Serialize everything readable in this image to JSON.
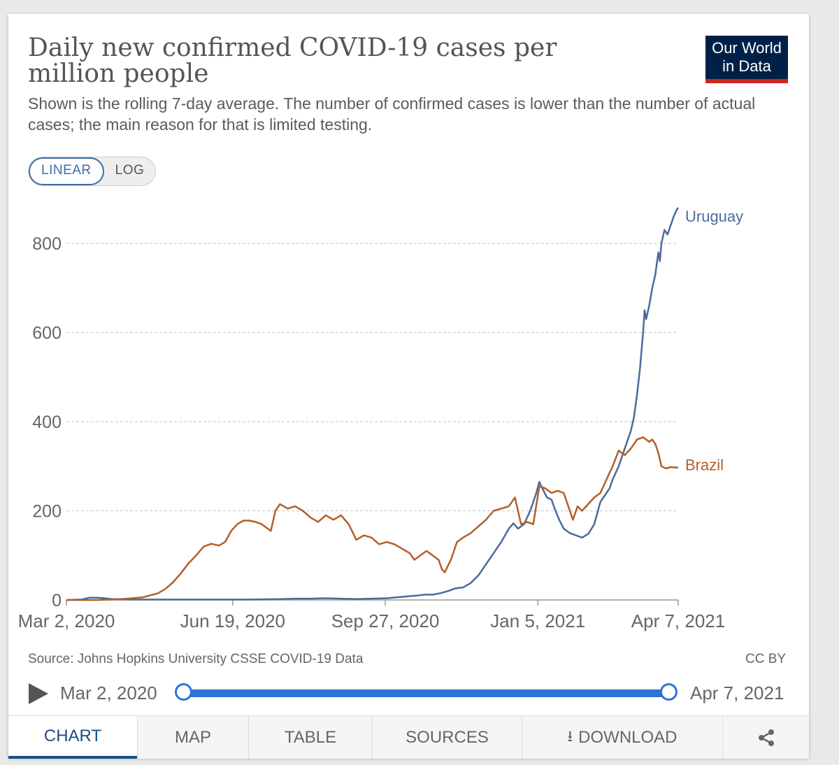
{
  "header": {
    "title": "Daily new confirmed COVID-19 cases per million people",
    "subtitle": "Shown is the rolling 7-day average. The number of confirmed cases is lower than the number of actual cases; the main reason for that is limited testing.",
    "logo_line1": "Our World",
    "logo_line2": "in Data"
  },
  "scale_toggle": {
    "linear_label": "LINEAR",
    "log_label": "LOG",
    "selected": "LINEAR"
  },
  "footer": {
    "source": "Source: Johns Hopkins University CSSE COVID-19 Data",
    "license": "CC BY"
  },
  "timeline": {
    "start_label": "Mar 2, 2020",
    "end_label": "Apr 7, 2021",
    "play_icon": "play-icon",
    "selected_start_fraction": 0,
    "selected_end_fraction": 1
  },
  "tabs": {
    "chart": "CHART",
    "map": "MAP",
    "table": "TABLE",
    "sources": "SOURCES",
    "download": "DOWNLOAD",
    "download_icon": "download-icon",
    "share_icon": "share-icon",
    "active": "CHART"
  },
  "colors": {
    "uruguay": "#4c6a9c",
    "brazil": "#b35f26",
    "accent": "#2e73d6",
    "logo_bg": "#002147",
    "logo_stripe": "#ce261e"
  },
  "chart_data": {
    "type": "line",
    "title": "Daily new confirmed COVID-19 cases per million people",
    "xlabel": "",
    "ylabel": "",
    "x_domain_days": [
      0,
      401
    ],
    "x_ticks": [
      {
        "day": 0,
        "label": "Mar 2, 2020"
      },
      {
        "day": 109,
        "label": "Jun 19, 2020"
      },
      {
        "day": 209,
        "label": "Sep 27, 2020"
      },
      {
        "day": 309,
        "label": "Jan 5, 2021"
      },
      {
        "day": 401,
        "label": "Apr 7, 2021"
      }
    ],
    "ylim": [
      0,
      880
    ],
    "y_ticks": [
      0,
      200,
      400,
      600,
      800
    ],
    "grid": true,
    "series": [
      {
        "name": "Uruguay",
        "points": [
          [
            0,
            0
          ],
          [
            10,
            1
          ],
          [
            15,
            5
          ],
          [
            20,
            5
          ],
          [
            25,
            4
          ],
          [
            30,
            2
          ],
          [
            40,
            1
          ],
          [
            60,
            1
          ],
          [
            80,
            1
          ],
          [
            100,
            1
          ],
          [
            120,
            1
          ],
          [
            140,
            2
          ],
          [
            150,
            3
          ],
          [
            160,
            3
          ],
          [
            170,
            4
          ],
          [
            180,
            3
          ],
          [
            190,
            2
          ],
          [
            200,
            3
          ],
          [
            210,
            4
          ],
          [
            220,
            7
          ],
          [
            230,
            10
          ],
          [
            235,
            12
          ],
          [
            240,
            12
          ],
          [
            245,
            15
          ],
          [
            250,
            20
          ],
          [
            255,
            26
          ],
          [
            260,
            28
          ],
          [
            265,
            38
          ],
          [
            270,
            55
          ],
          [
            275,
            80
          ],
          [
            280,
            105
          ],
          [
            285,
            130
          ],
          [
            290,
            160
          ],
          [
            293,
            172
          ],
          [
            296,
            160
          ],
          [
            300,
            170
          ],
          [
            304,
            200
          ],
          [
            308,
            240
          ],
          [
            310,
            265
          ],
          [
            312,
            250
          ],
          [
            315,
            230
          ],
          [
            318,
            225
          ],
          [
            320,
            205
          ],
          [
            323,
            180
          ],
          [
            326,
            160
          ],
          [
            330,
            150
          ],
          [
            334,
            145
          ],
          [
            338,
            140
          ],
          [
            342,
            148
          ],
          [
            346,
            170
          ],
          [
            350,
            220
          ],
          [
            354,
            240
          ],
          [
            356,
            250
          ],
          [
            358,
            270
          ],
          [
            362,
            300
          ],
          [
            366,
            340
          ],
          [
            368,
            360
          ],
          [
            370,
            380
          ],
          [
            372,
            410
          ],
          [
            374,
            460
          ],
          [
            376,
            520
          ],
          [
            378,
            600
          ],
          [
            379,
            650
          ],
          [
            380,
            630
          ],
          [
            382,
            660
          ],
          [
            384,
            700
          ],
          [
            386,
            730
          ],
          [
            388,
            780
          ],
          [
            389,
            760
          ],
          [
            390,
            800
          ],
          [
            392,
            830
          ],
          [
            394,
            820
          ],
          [
            396,
            840
          ],
          [
            398,
            860
          ],
          [
            400,
            875
          ],
          [
            401,
            880
          ]
        ]
      },
      {
        "name": "Brazil",
        "points": [
          [
            0,
            0
          ],
          [
            20,
            0
          ],
          [
            30,
            1
          ],
          [
            40,
            3
          ],
          [
            50,
            6
          ],
          [
            60,
            15
          ],
          [
            65,
            25
          ],
          [
            70,
            40
          ],
          [
            75,
            60
          ],
          [
            80,
            82
          ],
          [
            85,
            100
          ],
          [
            90,
            120
          ],
          [
            95,
            126
          ],
          [
            100,
            122
          ],
          [
            104,
            130
          ],
          [
            108,
            155
          ],
          [
            112,
            170
          ],
          [
            116,
            178
          ],
          [
            120,
            178
          ],
          [
            124,
            175
          ],
          [
            128,
            170
          ],
          [
            132,
            160
          ],
          [
            134,
            155
          ],
          [
            137,
            200
          ],
          [
            140,
            215
          ],
          [
            145,
            205
          ],
          [
            150,
            210
          ],
          [
            155,
            200
          ],
          [
            160,
            185
          ],
          [
            165,
            175
          ],
          [
            170,
            190
          ],
          [
            175,
            180
          ],
          [
            180,
            190
          ],
          [
            185,
            170
          ],
          [
            190,
            135
          ],
          [
            195,
            145
          ],
          [
            200,
            140
          ],
          [
            205,
            125
          ],
          [
            210,
            130
          ],
          [
            215,
            125
          ],
          [
            220,
            115
          ],
          [
            225,
            105
          ],
          [
            228,
            90
          ],
          [
            232,
            100
          ],
          [
            236,
            110
          ],
          [
            240,
            100
          ],
          [
            244,
            90
          ],
          [
            246,
            70
          ],
          [
            248,
            62
          ],
          [
            252,
            90
          ],
          [
            256,
            130
          ],
          [
            260,
            140
          ],
          [
            265,
            150
          ],
          [
            270,
            165
          ],
          [
            275,
            180
          ],
          [
            280,
            200
          ],
          [
            285,
            205
          ],
          [
            290,
            210
          ],
          [
            294,
            230
          ],
          [
            296,
            200
          ],
          [
            298,
            170
          ],
          [
            302,
            175
          ],
          [
            306,
            170
          ],
          [
            310,
            255
          ],
          [
            314,
            250
          ],
          [
            318,
            240
          ],
          [
            322,
            245
          ],
          [
            326,
            240
          ],
          [
            330,
            200
          ],
          [
            332,
            180
          ],
          [
            335,
            210
          ],
          [
            338,
            200
          ],
          [
            342,
            215
          ],
          [
            346,
            230
          ],
          [
            350,
            240
          ],
          [
            354,
            270
          ],
          [
            358,
            300
          ],
          [
            362,
            335
          ],
          [
            366,
            325
          ],
          [
            370,
            340
          ],
          [
            374,
            360
          ],
          [
            378,
            365
          ],
          [
            382,
            355
          ],
          [
            384,
            360
          ],
          [
            386,
            350
          ],
          [
            388,
            330
          ],
          [
            390,
            300
          ],
          [
            393,
            295
          ],
          [
            396,
            298
          ],
          [
            401,
            297
          ]
        ]
      }
    ]
  }
}
